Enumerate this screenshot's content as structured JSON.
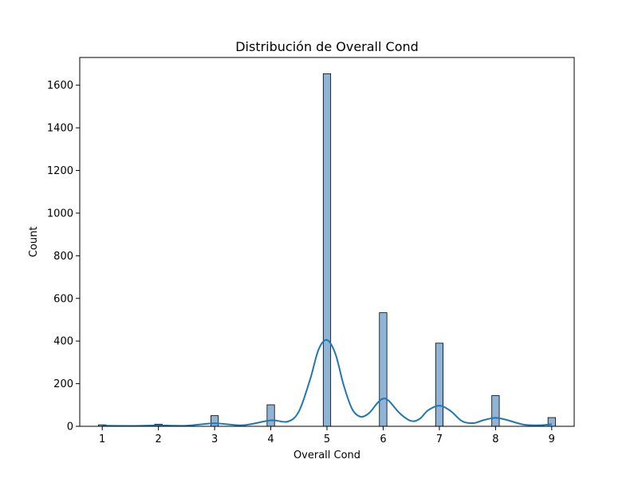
{
  "chart_data": {
    "type": "bar",
    "title": "Distribución de Overall Cond",
    "xlabel": "Overall Cond",
    "ylabel": "Count",
    "xlim": [
      0.6,
      9.4
    ],
    "ylim": [
      0,
      1730
    ],
    "x_ticks": [
      1,
      2,
      3,
      4,
      5,
      6,
      7,
      8,
      9
    ],
    "y_ticks": [
      0,
      200,
      400,
      600,
      800,
      1000,
      1200,
      1400,
      1600
    ],
    "bin_width": 0.133,
    "bars": [
      {
        "x": 1,
        "value": 7
      },
      {
        "x": 2,
        "value": 10
      },
      {
        "x": 3,
        "value": 50
      },
      {
        "x": 4,
        "value": 101
      },
      {
        "x": 5,
        "value": 1654
      },
      {
        "x": 6,
        "value": 533
      },
      {
        "x": 7,
        "value": 390
      },
      {
        "x": 8,
        "value": 144
      },
      {
        "x": 9,
        "value": 41
      }
    ],
    "kde": [
      [
        1.0,
        3
      ],
      [
        1.5,
        2
      ],
      [
        2.0,
        4
      ],
      [
        2.5,
        3
      ],
      [
        3.0,
        14
      ],
      [
        3.5,
        5
      ],
      [
        4.0,
        28
      ],
      [
        4.3,
        22
      ],
      [
        4.5,
        70
      ],
      [
        4.7,
        220
      ],
      [
        4.85,
        360
      ],
      [
        5.0,
        405
      ],
      [
        5.15,
        340
      ],
      [
        5.3,
        190
      ],
      [
        5.45,
        80
      ],
      [
        5.6,
        45
      ],
      [
        5.75,
        62
      ],
      [
        5.9,
        110
      ],
      [
        6.0,
        130
      ],
      [
        6.1,
        120
      ],
      [
        6.3,
        60
      ],
      [
        6.5,
        25
      ],
      [
        6.65,
        35
      ],
      [
        6.8,
        75
      ],
      [
        7.0,
        97
      ],
      [
        7.2,
        72
      ],
      [
        7.4,
        25
      ],
      [
        7.6,
        15
      ],
      [
        7.8,
        30
      ],
      [
        8.0,
        40
      ],
      [
        8.2,
        30
      ],
      [
        8.5,
        8
      ],
      [
        8.8,
        5
      ],
      [
        9.0,
        10
      ]
    ],
    "bar_color": "#8fb4d6",
    "bar_edge": "#000000",
    "kde_color": "#1f77b4",
    "grid": false,
    "legend": "none"
  }
}
